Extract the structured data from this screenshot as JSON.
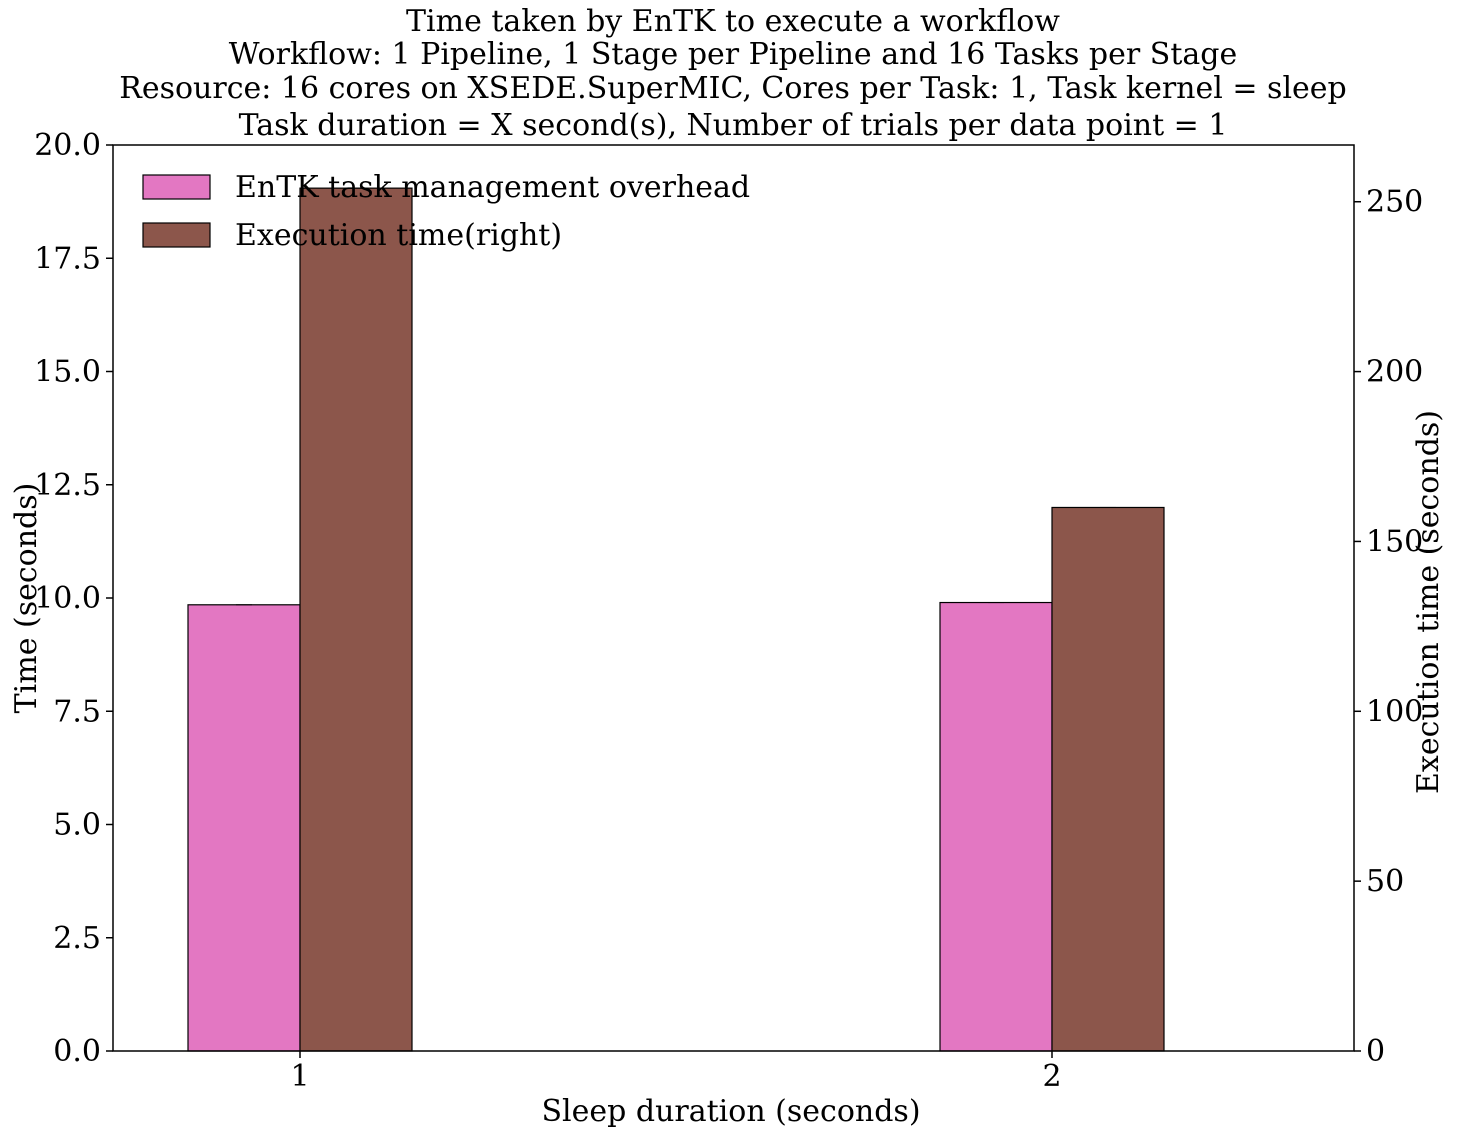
{
  "chart_data": {
    "type": "bar",
    "title_lines": [
      "Time taken by EnTK to execute a workflow",
      "Workflow: 1 Pipeline, 1 Stage per Pipeline and 16 Tasks per Stage",
      "Resource: 16 cores on XSEDE.SuperMIC, Cores per Task: 1, Task kernel = sleep",
      "Task duration = X second(s), Number of trials per data point = 1"
    ],
    "xlabel": "Sleep duration (seconds)",
    "ylabel": "Time (seconds)",
    "ylabel_right": "Execution time (seconds)",
    "categories": [
      "1",
      "2"
    ],
    "ylim": [
      0,
      20
    ],
    "yticks": [
      "0.0",
      "2.5",
      "5.0",
      "7.5",
      "10.0",
      "12.5",
      "15.0",
      "17.5",
      "20.0"
    ],
    "ylim_right": [
      0,
      266.7
    ],
    "yticks_right": [
      "0",
      "50",
      "100",
      "150",
      "200",
      "250"
    ],
    "series": [
      {
        "name": "EnTK task management overhead",
        "axis": "left",
        "color": "#e377c2",
        "values": [
          9.85,
          9.9
        ]
      },
      {
        "name": "Execution time(right)",
        "axis": "right",
        "color": "#8c564b",
        "values": [
          254,
          160
        ]
      }
    ],
    "legend": "top-left",
    "grid": false
  }
}
